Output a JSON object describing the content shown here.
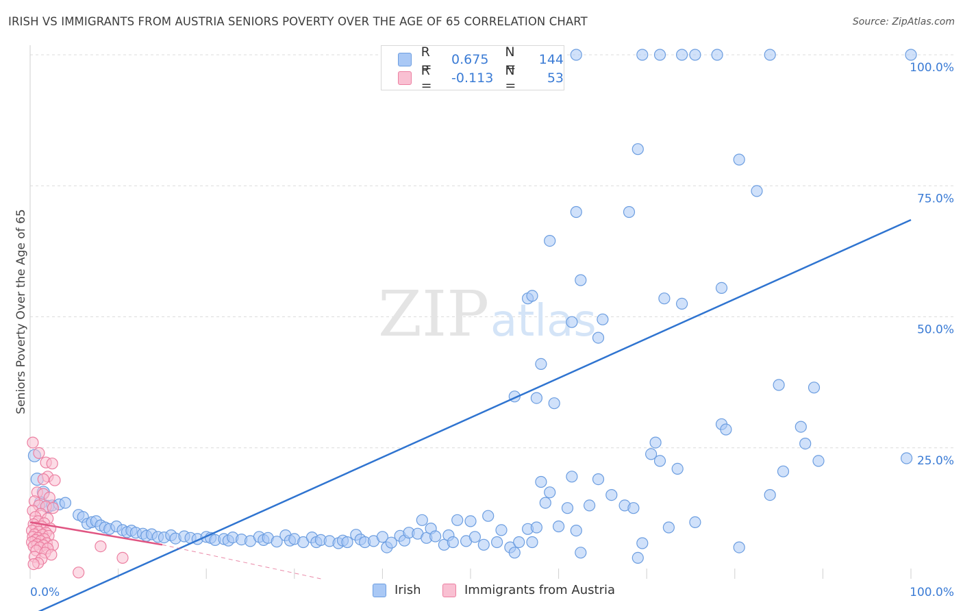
{
  "title": "IRISH VS IMMIGRANTS FROM AUSTRIA SENIORS POVERTY OVER THE AGE OF 65 CORRELATION CHART",
  "source": "Source: ZipAtlas.com",
  "watermark": {
    "zip": "ZIP",
    "atlas": "atlas"
  },
  "legend": {
    "r_label": "R =",
    "n_label": "N =",
    "rows": [
      {
        "name": "Irish",
        "r": "0.675",
        "n": "144",
        "color": "#a9c8f5",
        "border": "#6b9de0"
      },
      {
        "name": "Immigrants from Austria",
        "r": "-0.113",
        "n": "53",
        "color": "#f9c0d2",
        "border": "#ec7fa1"
      }
    ]
  },
  "chart_data": {
    "type": "scatter",
    "title": "IRISH VS IMMIGRANTS FROM AUSTRIA SENIORS POVERTY OVER THE AGE OF 65 CORRELATION CHART",
    "xlabel": "",
    "ylabel": "Seniors Poverty Over the Age of 65",
    "xlim": [
      0,
      100
    ],
    "ylim": [
      0,
      100
    ],
    "x_tick_labels": [
      "0.0%",
      "100.0%"
    ],
    "y_ticks": [
      25,
      50,
      75,
      100
    ],
    "y_tick_labels": [
      "25.0%",
      "50.0%",
      "75.0%",
      "100.0%"
    ],
    "grid": true,
    "series": [
      {
        "name": "Irish",
        "color": "#6b9de0",
        "fill": "#a9c8f5",
        "trend": {
          "x0": 0,
          "y0": -7,
          "x1": 100,
          "y1": 68.5,
          "color": "#2f74d0"
        },
        "points": [
          [
            0.5,
            23.5
          ],
          [
            0.8,
            19.0
          ],
          [
            1.5,
            16.5
          ],
          [
            1.2,
            14.5
          ],
          [
            2.0,
            13.8
          ],
          [
            2.5,
            14.0
          ],
          [
            3.3,
            14.2
          ],
          [
            4.0,
            14.5
          ],
          [
            5.5,
            12.2
          ],
          [
            6.0,
            11.8
          ],
          [
            6.5,
            10.5
          ],
          [
            7.0,
            10.8
          ],
          [
            7.5,
            11.0
          ],
          [
            8.0,
            10.2
          ],
          [
            8.5,
            9.8
          ],
          [
            9.0,
            9.5
          ],
          [
            9.8,
            10.0
          ],
          [
            10.5,
            9.3
          ],
          [
            11.0,
            8.9
          ],
          [
            11.5,
            9.2
          ],
          [
            12.0,
            8.8
          ],
          [
            12.8,
            8.6
          ],
          [
            13.2,
            8.2
          ],
          [
            13.8,
            8.5
          ],
          [
            14.5,
            8.0
          ],
          [
            15.2,
            7.9
          ],
          [
            16.0,
            8.3
          ],
          [
            16.5,
            7.7
          ],
          [
            17.5,
            8.1
          ],
          [
            18.2,
            7.8
          ],
          [
            19.0,
            7.6
          ],
          [
            20.0,
            8.0
          ],
          [
            20.5,
            7.8
          ],
          [
            21.0,
            7.4
          ],
          [
            22.0,
            7.6
          ],
          [
            22.5,
            7.3
          ],
          [
            23.0,
            7.9
          ],
          [
            24.0,
            7.5
          ],
          [
            25.0,
            7.2
          ],
          [
            26.0,
            8.0
          ],
          [
            26.5,
            7.4
          ],
          [
            27.0,
            7.8
          ],
          [
            28.0,
            7.1
          ],
          [
            29.0,
            8.3
          ],
          [
            29.5,
            7.3
          ],
          [
            30.0,
            7.6
          ],
          [
            31.0,
            7.0
          ],
          [
            32.0,
            7.9
          ],
          [
            32.5,
            7.0
          ],
          [
            33.0,
            7.4
          ],
          [
            34.0,
            7.2
          ],
          [
            35.0,
            6.8
          ],
          [
            35.5,
            7.3
          ],
          [
            36.0,
            7.0
          ],
          [
            37.0,
            8.4
          ],
          [
            37.5,
            7.5
          ],
          [
            38.0,
            7.0
          ],
          [
            39.0,
            7.2
          ],
          [
            40.0,
            8.0
          ],
          [
            40.5,
            6.0
          ],
          [
            41.0,
            6.9
          ],
          [
            42.0,
            8.2
          ],
          [
            42.5,
            7.3
          ],
          [
            43.0,
            8.8
          ],
          [
            44.0,
            8.6
          ],
          [
            44.5,
            11.2
          ],
          [
            45.0,
            7.8
          ],
          [
            45.5,
            9.6
          ],
          [
            46.0,
            8.1
          ],
          [
            47.0,
            6.5
          ],
          [
            47.5,
            8.3
          ],
          [
            48.0,
            7.0
          ],
          [
            48.5,
            11.2
          ],
          [
            49.5,
            7.2
          ],
          [
            50.0,
            11.0
          ],
          [
            50.5,
            8.0
          ],
          [
            51.5,
            6.5
          ],
          [
            52.0,
            12.0
          ],
          [
            53.0,
            7.0
          ],
          [
            53.5,
            9.3
          ],
          [
            54.5,
            6.0
          ],
          [
            55.0,
            5.0
          ],
          [
            55.5,
            7.0
          ],
          [
            56.5,
            9.5
          ],
          [
            57.0,
            7.0
          ],
          [
            57.5,
            9.8
          ],
          [
            58.0,
            18.5
          ],
          [
            58.5,
            14.5
          ],
          [
            59.0,
            16.5
          ],
          [
            60.0,
            10.0
          ],
          [
            61.0,
            13.5
          ],
          [
            61.5,
            19.5
          ],
          [
            62.0,
            9.2
          ],
          [
            62.5,
            5.0
          ],
          [
            63.5,
            14.0
          ],
          [
            64.5,
            19.0
          ],
          [
            66.0,
            16.0
          ],
          [
            67.5,
            14.0
          ],
          [
            68.5,
            13.5
          ],
          [
            69.5,
            6.8
          ],
          [
            69.0,
            4.0
          ],
          [
            70.5,
            23.8
          ],
          [
            71.0,
            26.0
          ],
          [
            71.5,
            22.5
          ],
          [
            72.5,
            9.8
          ],
          [
            73.5,
            21.0
          ],
          [
            75.5,
            10.8
          ],
          [
            78.5,
            29.5
          ],
          [
            79.0,
            28.5
          ],
          [
            80.5,
            6.0
          ],
          [
            84.0,
            16.0
          ],
          [
            85.0,
            37.0
          ],
          [
            85.5,
            20.5
          ],
          [
            87.5,
            29.0
          ],
          [
            88.0,
            25.8
          ],
          [
            89.0,
            36.5
          ],
          [
            89.5,
            22.5
          ],
          [
            99.5,
            23.0
          ],
          [
            57.5,
            34.5
          ],
          [
            59.5,
            33.5
          ],
          [
            55.0,
            34.8
          ],
          [
            58.0,
            41.0
          ],
          [
            62.5,
            57.0
          ],
          [
            59.0,
            64.5
          ],
          [
            62.0,
            70.0
          ],
          [
            56.5,
            53.5
          ],
          [
            57.0,
            54.0
          ],
          [
            61.5,
            49.0
          ],
          [
            65.0,
            49.5
          ],
          [
            64.5,
            46.0
          ],
          [
            68.0,
            70.0
          ],
          [
            69.0,
            82.0
          ],
          [
            72.0,
            53.5
          ],
          [
            74.0,
            52.5
          ],
          [
            78.5,
            55.5
          ],
          [
            80.5,
            80.0
          ],
          [
            82.5,
            74.0
          ],
          [
            62.0,
            100
          ],
          [
            69.5,
            100
          ],
          [
            71.5,
            100
          ],
          [
            74.0,
            100
          ],
          [
            75.5,
            100
          ],
          [
            78.0,
            100
          ],
          [
            84.0,
            100
          ],
          [
            100.0,
            100
          ]
        ]
      },
      {
        "name": "Immigrants from Austria",
        "color": "#ec7fa1",
        "fill": "#f9c0d2",
        "trend": {
          "x0": 0,
          "y0": 10.8,
          "x1": 15,
          "y1": 6.5,
          "dash_to": {
            "x": 33,
            "y": 0
          },
          "color": "#e05582"
        },
        "points": [
          [
            0.3,
            26.0
          ],
          [
            1.0,
            24.0
          ],
          [
            1.8,
            22.2
          ],
          [
            2.5,
            22.0
          ],
          [
            2.0,
            19.5
          ],
          [
            1.5,
            19.0
          ],
          [
            2.8,
            18.8
          ],
          [
            0.8,
            16.5
          ],
          [
            1.5,
            16.2
          ],
          [
            2.2,
            15.5
          ],
          [
            0.5,
            14.8
          ],
          [
            1.0,
            14.0
          ],
          [
            1.8,
            13.8
          ],
          [
            2.6,
            13.5
          ],
          [
            0.3,
            13.0
          ],
          [
            1.2,
            12.4
          ],
          [
            0.6,
            11.8
          ],
          [
            2.0,
            11.5
          ],
          [
            0.9,
            11.0
          ],
          [
            1.6,
            10.6
          ],
          [
            0.4,
            10.4
          ],
          [
            1.3,
            10.0
          ],
          [
            0.7,
            9.8
          ],
          [
            2.3,
            9.6
          ],
          [
            0.2,
            9.2
          ],
          [
            1.0,
            9.0
          ],
          [
            1.8,
            8.8
          ],
          [
            0.5,
            8.5
          ],
          [
            1.4,
            8.4
          ],
          [
            2.1,
            8.2
          ],
          [
            0.3,
            8.0
          ],
          [
            0.9,
            7.8
          ],
          [
            1.6,
            7.6
          ],
          [
            0.6,
            7.4
          ],
          [
            1.2,
            7.2
          ],
          [
            0.2,
            7.0
          ],
          [
            1.9,
            6.8
          ],
          [
            0.8,
            6.6
          ],
          [
            1.5,
            6.4
          ],
          [
            2.6,
            6.4
          ],
          [
            0.4,
            6.2
          ],
          [
            1.1,
            6.0
          ],
          [
            2.0,
            5.8
          ],
          [
            0.7,
            5.4
          ],
          [
            1.7,
            5.0
          ],
          [
            2.4,
            4.6
          ],
          [
            0.5,
            4.2
          ],
          [
            1.3,
            3.8
          ],
          [
            0.9,
            3.0
          ],
          [
            0.4,
            2.8
          ],
          [
            8.0,
            6.2
          ],
          [
            10.5,
            4.0
          ],
          [
            5.5,
            1.2
          ]
        ]
      }
    ]
  }
}
